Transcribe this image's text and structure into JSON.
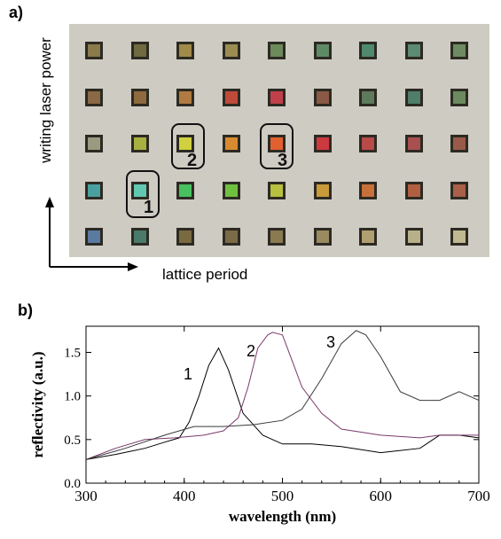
{
  "panel_a": {
    "label": "a)",
    "ylabel": "writing laser power",
    "xlabel": "lattice period",
    "annotations": [
      "1",
      "2",
      "3"
    ],
    "rows": [
      [
        "#8b7a4a",
        "#6f6a40",
        "#a18a4a",
        "#9b8c52",
        "#6c8a5a",
        "#5f8a66",
        "#4f8a6e",
        "#5c8a72",
        "#6e8a62"
      ],
      [
        "#8a6a44",
        "#8e6a3e",
        "#b07a40",
        "#c04a3a",
        "#c0404a",
        "#8a5a46",
        "#5d7a5c",
        "#4f7e6a",
        "#6c8a60"
      ],
      [
        "#9a9a80",
        "#a8b040",
        "#d0d040",
        "#d88a30",
        "#e06030",
        "#cc3a40",
        "#b84a48",
        "#a85050",
        "#9a5a4a"
      ],
      [
        "#4aa0a0",
        "#60c8b0",
        "#48c060",
        "#70c040",
        "#b8c040",
        "#c89a3a",
        "#c8703a",
        "#b06040",
        "#a86048"
      ],
      [
        "#5a7aa0",
        "#4a7a6a",
        "#7a6a40",
        "#7a6a46",
        "#8a7a50",
        "#9a8a60",
        "#b0a070",
        "#b8b088",
        "#c0b890"
      ]
    ]
  },
  "chart_data": {
    "type": "line",
    "panel_label": "b)",
    "xlabel": "wavelength (nm)",
    "ylabel": "reflectivity (a.u.)",
    "xlim": [
      300,
      700
    ],
    "ylim": [
      0,
      1.8
    ],
    "xticks": [
      "300",
      "400",
      "500",
      "600",
      "700"
    ],
    "yticks": [
      "0.0",
      "0.5",
      "1.0",
      "1.5"
    ],
    "series": [
      {
        "name": "1",
        "color": "#000000",
        "x": [
          300,
          330,
          360,
          380,
          395,
          405,
          415,
          425,
          435,
          445,
          460,
          480,
          500,
          530,
          560,
          600,
          640,
          660,
          680,
          700
        ],
        "y": [
          0.27,
          0.33,
          0.4,
          0.47,
          0.52,
          0.7,
          1.0,
          1.35,
          1.55,
          1.3,
          0.8,
          0.55,
          0.45,
          0.45,
          0.42,
          0.35,
          0.4,
          0.55,
          0.55,
          0.52
        ]
      },
      {
        "name": "2",
        "color": "#7a3a6a",
        "x": [
          300,
          330,
          360,
          390,
          420,
          440,
          455,
          465,
          475,
          485,
          490,
          500,
          510,
          520,
          540,
          560,
          600,
          640,
          660,
          700
        ],
        "y": [
          0.27,
          0.4,
          0.5,
          0.52,
          0.55,
          0.6,
          0.75,
          1.1,
          1.55,
          1.7,
          1.73,
          1.7,
          1.4,
          1.1,
          0.8,
          0.62,
          0.55,
          0.52,
          0.55,
          0.55
        ]
      },
      {
        "name": "3",
        "color": "#3a3a3a",
        "x": [
          300,
          340,
          380,
          410,
          440,
          470,
          500,
          520,
          540,
          560,
          575,
          585,
          600,
          620,
          640,
          660,
          680,
          700
        ],
        "y": [
          0.27,
          0.4,
          0.55,
          0.65,
          0.65,
          0.67,
          0.72,
          0.85,
          1.2,
          1.6,
          1.75,
          1.7,
          1.45,
          1.05,
          0.95,
          0.95,
          1.05,
          0.95
        ]
      }
    ],
    "annotations": [
      "1",
      "2",
      "3"
    ],
    "grid": false
  }
}
